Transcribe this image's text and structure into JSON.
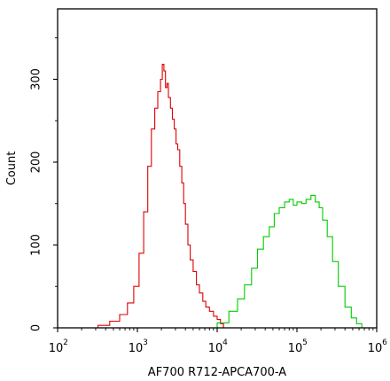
{
  "chart_data": {
    "type": "line",
    "title": "",
    "xlabel": "AF700 R712-APCA700-A",
    "ylabel": "Count",
    "x_scale": "log",
    "xlim": [
      100,
      1000000
    ],
    "ylim": [
      0,
      385
    ],
    "x_ticks": [
      {
        "base": "10",
        "exp": "2",
        "value": 100
      },
      {
        "base": "10",
        "exp": "3",
        "value": 1000
      },
      {
        "base": "10",
        "exp": "4",
        "value": 10000
      },
      {
        "base": "10",
        "exp": "5",
        "value": 100000
      },
      {
        "base": "10",
        "exp": "6",
        "value": 1000000
      }
    ],
    "y_ticks": [
      {
        "label": "0",
        "value": 0
      },
      {
        "label": "100",
        "value": 100
      },
      {
        "label": "200",
        "value": 200
      },
      {
        "label": "300",
        "value": 300
      }
    ],
    "grid": false,
    "legend": "none",
    "series": [
      {
        "color": "#dd0000",
        "x": [
          220,
          320,
          450,
          600,
          750,
          900,
          1050,
          1200,
          1350,
          1500,
          1650,
          1800,
          1950,
          2050,
          2150,
          2250,
          2350,
          2450,
          2600,
          2750,
          2900,
          3050,
          3200,
          3400,
          3600,
          3800,
          4000,
          4300,
          4600,
          5000,
          5500,
          6000,
          6600,
          7200,
          8000,
          9000,
          10000,
          11000,
          12000
        ],
        "y": [
          0,
          3,
          8,
          16,
          30,
          50,
          90,
          140,
          195,
          240,
          265,
          285,
          300,
          318,
          310,
          290,
          295,
          278,
          265,
          252,
          240,
          222,
          215,
          195,
          175,
          150,
          125,
          100,
          82,
          68,
          52,
          42,
          32,
          25,
          20,
          14,
          10,
          5,
          0
        ]
      },
      {
        "color": "#00cc00",
        "x": [
          7000,
          10000,
          14000,
          18000,
          22000,
          27000,
          32000,
          38000,
          45000,
          52000,
          60000,
          70000,
          80000,
          90000,
          100000,
          115000,
          130000,
          150000,
          170000,
          190000,
          210000,
          240000,
          280000,
          330000,
          400000,
          480000,
          560000,
          650000
        ],
        "y": [
          0,
          6,
          20,
          35,
          52,
          72,
          95,
          110,
          122,
          138,
          145,
          152,
          155,
          148,
          152,
          150,
          155,
          160,
          152,
          145,
          130,
          110,
          80,
          50,
          25,
          12,
          5,
          0
        ]
      }
    ]
  }
}
